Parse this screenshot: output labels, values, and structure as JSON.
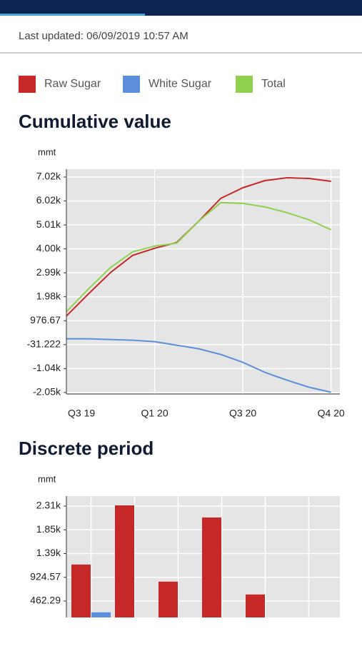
{
  "header": {
    "last_updated": "Last updated: 06/09/2019 10:57 AM"
  },
  "chart_data": [
    {
      "type": "line",
      "title": "Cumulative value",
      "y_label": "mmt",
      "x": [
        0,
        0.25,
        0.5,
        0.75,
        1,
        1.25,
        1.5,
        1.75,
        2,
        2.25,
        2.5,
        2.75,
        3
      ],
      "xlim": [
        0,
        3.1
      ],
      "xticks": [
        {
          "value": 0,
          "label": "Q3 19"
        },
        {
          "value": 1,
          "label": "Q1 20"
        },
        {
          "value": 2,
          "label": "Q3 20"
        },
        {
          "value": 3,
          "label": "Q4 20"
        }
      ],
      "ylim": [
        -2110,
        7354
      ],
      "yticks": [
        {
          "value": -2047,
          "label": "-2.05k"
        },
        {
          "value": -1039.1,
          "label": "-1.04k"
        },
        -31.222,
        976.67,
        {
          "value": 1984.56,
          "label": "1.98k"
        },
        {
          "value": 2992.45,
          "label": "2.99k"
        },
        {
          "value": 4000.34,
          "label": "4.00k"
        },
        {
          "value": 5008.23,
          "label": "5.01k"
        },
        {
          "value": 6016.12,
          "label": "6.02k"
        },
        {
          "value": 7024,
          "label": "7.02k"
        }
      ],
      "grid": true,
      "series": [
        {
          "name": "Raw Sugar",
          "color": "#c62828",
          "values": [
            1174,
            2104,
            3004,
            3724,
            4024,
            4264,
            5164,
            6124,
            6574,
            6874,
            6994,
            6964,
            6844
          ]
        },
        {
          "name": "White Sugar",
          "color": "#5b8fdc",
          "values": [
            214,
            214,
            184,
            154,
            94,
            -56,
            -206,
            -446,
            -776,
            -1196,
            -1526,
            -1826,
            -2036
          ]
        },
        {
          "name": "Total",
          "color": "#8fd14f",
          "values": [
            1354,
            2314,
            3214,
            3874,
            4114,
            4234,
            5164,
            5944,
            5914,
            5764,
            5524,
            5224,
            4804
          ]
        }
      ]
    },
    {
      "type": "bar",
      "title": "Discrete period",
      "y_label": "mmt",
      "categories": [
        null,
        null,
        null,
        null,
        null,
        null
      ],
      "ylim": [
        143,
        2506
      ],
      "yticks": [
        {
          "value": 462.29,
          "label": "462.29"
        },
        {
          "value": 924.57,
          "label": "924.57"
        },
        {
          "value": 1386.86,
          "label": "1.39k"
        },
        {
          "value": 1849.14,
          "label": "1.85k"
        },
        {
          "value": 2311.43,
          "label": "2.31k"
        }
      ],
      "grid": true,
      "series": [
        {
          "name": "Raw Sugar",
          "color": "#c62828",
          "values": [
            1173,
            2325,
            840,
            2089,
            590,
            null
          ]
        },
        {
          "name": "White Sugar",
          "color": "#5b8fdc",
          "values": [
            243,
            null,
            null,
            null,
            null,
            null
          ]
        }
      ]
    }
  ]
}
